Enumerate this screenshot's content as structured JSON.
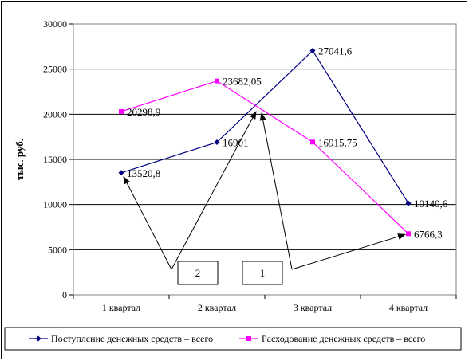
{
  "chart_data": {
    "type": "line",
    "ylabel": "тыс. руб.",
    "ylim": [
      0,
      30000
    ],
    "yticks": [
      "0",
      "5000",
      "10000",
      "15000",
      "20000",
      "25000",
      "30000"
    ],
    "categories": [
      "1 квартал",
      "2 квартал",
      "3 квартал",
      "4 квартал"
    ],
    "grid": true,
    "legend_position": "bottom",
    "series": [
      {
        "name": "Поступление денежных средств – всего",
        "color": "#000080",
        "marker": "diamond",
        "values": [
          13520.8,
          16901,
          27041.6,
          10140.6
        ],
        "labels": [
          "13520,8",
          "16901",
          "27041,6",
          "10140,6"
        ]
      },
      {
        "name": "Расходование денежных средств – всего",
        "color": "#ff00ff",
        "marker": "square",
        "values": [
          20298.9,
          23682.05,
          16915.75,
          6766.3
        ],
        "labels": [
          "20298,9",
          "23682,05",
          "16915,75",
          "6766,3"
        ]
      }
    ],
    "annotations": {
      "boxes": [
        "2",
        "1"
      ],
      "arrow_color": "#000000"
    }
  }
}
